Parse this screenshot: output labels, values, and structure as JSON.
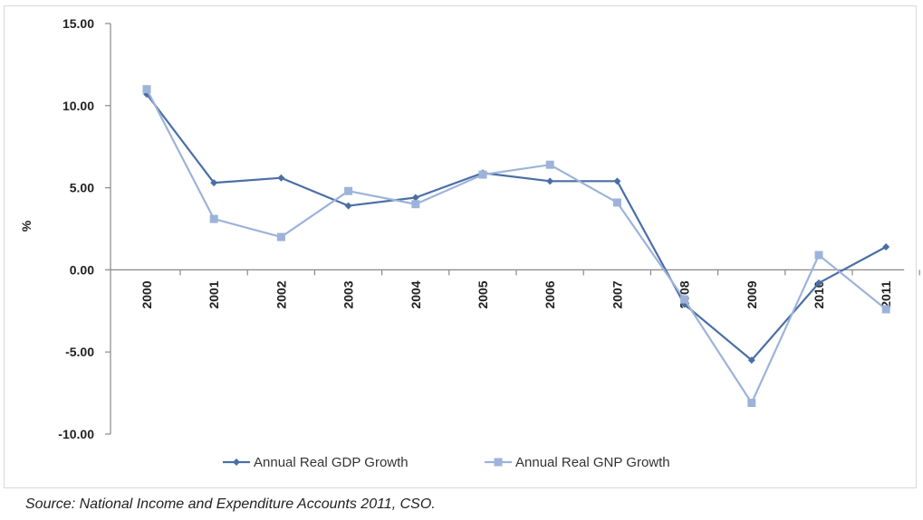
{
  "chart_data": {
    "type": "line",
    "x": [
      "2000",
      "2001",
      "2002",
      "2003",
      "2004",
      "2005",
      "2006",
      "2007",
      "2008",
      "2009",
      "2010",
      "2011"
    ],
    "series": [
      {
        "name": "Annual Real GDP Growth",
        "values": [
          10.7,
          5.3,
          5.6,
          3.9,
          4.4,
          5.9,
          5.4,
          5.4,
          -2.1,
          -5.5,
          -0.8,
          1.4
        ],
        "color": "#4a6fa5",
        "marker": "diamond"
      },
      {
        "name": "Annual Real GNP Growth",
        "values": [
          11.0,
          3.1,
          2.0,
          4.8,
          4.0,
          5.8,
          6.4,
          4.1,
          -1.8,
          -8.1,
          0.9,
          -2.4
        ],
        "color": "#9db3d9",
        "marker": "square"
      }
    ],
    "ylabel": "%",
    "ylim": [
      -10,
      15
    ],
    "yticks": [
      "15.00",
      "10.00",
      "5.00",
      "0.00",
      "-5.00",
      "-10.00"
    ],
    "grid": false,
    "legend_position": "bottom"
  },
  "source_text": "Source: National Income and Expenditure Accounts 2011, CSO."
}
